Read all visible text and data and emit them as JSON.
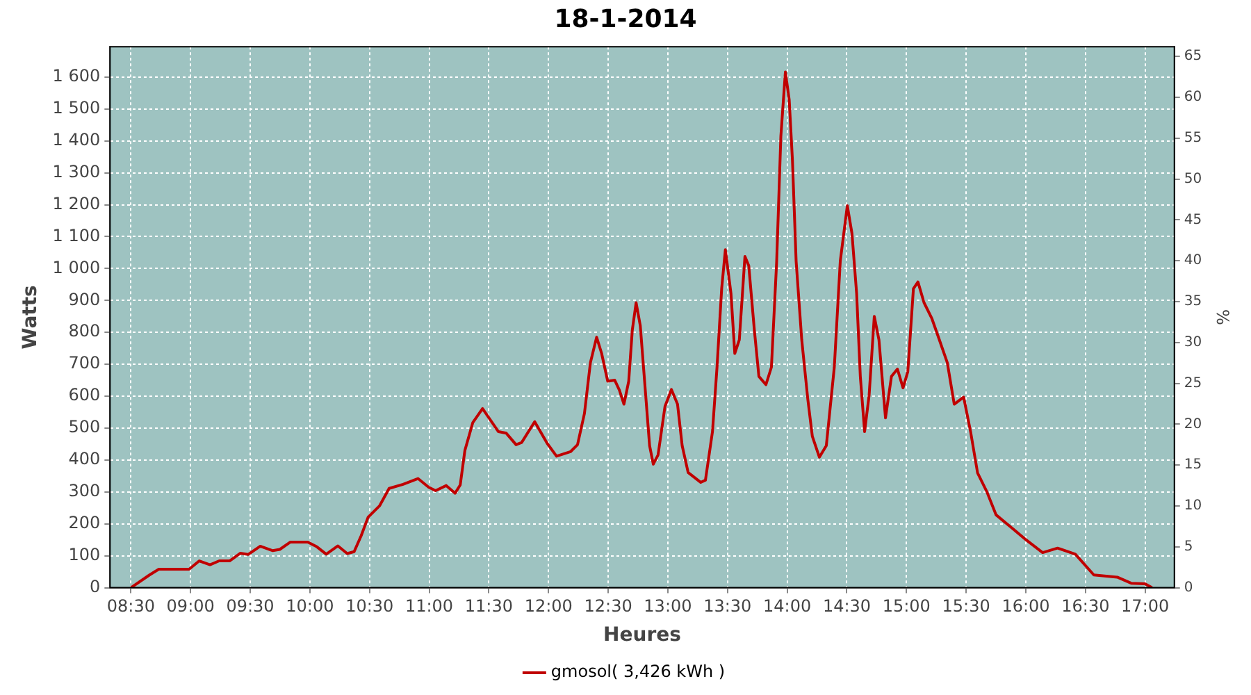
{
  "chart_data": {
    "type": "line",
    "title": "18-1-2014",
    "xlabel": "Heures",
    "ylabel": "Watts",
    "y2label": "%",
    "x": [
      8.5,
      8.656,
      8.734,
      8.889,
      8.988,
      9.073,
      9.163,
      9.24,
      9.327,
      9.416,
      9.482,
      9.584,
      9.689,
      9.748,
      9.837,
      9.982,
      10.059,
      10.137,
      10.235,
      10.313,
      10.371,
      10.43,
      10.488,
      10.585,
      10.664,
      10.781,
      10.906,
      10.995,
      11.053,
      11.143,
      11.217,
      11.26,
      11.299,
      11.365,
      11.447,
      11.58,
      11.646,
      11.728,
      11.775,
      11.884,
      11.989,
      12.067,
      12.184,
      12.243,
      12.301,
      12.351,
      12.403,
      12.445,
      12.496,
      12.555,
      12.594,
      12.632,
      12.672,
      12.702,
      12.734,
      12.769,
      12.808,
      12.847,
      12.878,
      12.918,
      12.976,
      13.03,
      13.081,
      13.12,
      13.17,
      13.276,
      13.315,
      13.374,
      13.412,
      13.451,
      13.482,
      13.529,
      13.561,
      13.599,
      13.646,
      13.678,
      13.725,
      13.763,
      13.822,
      13.868,
      13.912,
      13.947,
      13.985,
      14.017,
      14.044,
      14.075,
      14.122,
      14.173,
      14.211,
      14.27,
      14.328,
      14.395,
      14.445,
      14.504,
      14.543,
      14.582,
      14.613,
      14.649,
      14.687,
      14.73,
      14.769,
      14.824,
      14.874,
      14.924,
      14.971,
      15.011,
      15.058,
      15.096,
      15.147,
      15.213,
      15.275,
      15.342,
      15.4,
      15.479,
      15.537,
      15.596,
      15.673,
      15.751,
      15.868,
      16.005,
      16.141,
      16.266,
      16.415,
      16.57,
      16.766,
      16.883,
      16.999,
      17.058
    ],
    "series": [
      {
        "name": "gmosol( 3,426 kWh )",
        "color": "#c00000",
        "values": [
          0,
          40,
          58,
          58,
          58,
          84,
          72,
          84,
          84,
          108,
          104,
          130,
          116,
          120,
          143,
          143,
          128,
          105,
          131,
          107,
          113,
          163,
          221,
          257,
          311,
          324,
          342,
          315,
          304,
          320,
          296,
          322,
          430,
          517,
          561,
          489,
          484,
          448,
          455,
          520,
          452,
          412,
          426,
          448,
          546,
          705,
          785,
          734,
          647,
          650,
          619,
          575,
          647,
          807,
          893,
          821,
          633,
          445,
          387,
          416,
          568,
          621,
          575,
          445,
          361,
          330,
          337,
          489,
          691,
          937,
          1059,
          922,
          734,
          777,
          1038,
          1009,
          807,
          662,
          636,
          691,
          1023,
          1414,
          1616,
          1529,
          1341,
          1023,
          777,
          590,
          474,
          409,
          445,
          691,
          1023,
          1197,
          1110,
          922,
          662,
          489,
          604,
          850,
          777,
          532,
          662,
          685,
          626,
          677,
          937,
          958,
          893,
          843,
          777,
          705,
          575,
          597,
          489,
          359,
          301,
          228,
          192,
          149,
          110,
          124,
          105,
          40,
          33,
          14,
          12,
          0
        ]
      }
    ],
    "xlim": [
      8.325,
      17.245
    ],
    "xticks": [
      {
        "value": 8.5,
        "label": "08:30"
      },
      {
        "value": 9,
        "label": "09:00"
      },
      {
        "value": 9.5,
        "label": "09:30"
      },
      {
        "value": 10,
        "label": "10:00"
      },
      {
        "value": 10.5,
        "label": "10:30"
      },
      {
        "value": 11,
        "label": "11:00"
      },
      {
        "value": 11.5,
        "label": "11:30"
      },
      {
        "value": 12,
        "label": "12:00"
      },
      {
        "value": 12.5,
        "label": "12:30"
      },
      {
        "value": 13,
        "label": "13:00"
      },
      {
        "value": 13.5,
        "label": "13:30"
      },
      {
        "value": 14,
        "label": "14:00"
      },
      {
        "value": 14.5,
        "label": "14:30"
      },
      {
        "value": 15,
        "label": "15:00"
      },
      {
        "value": 15.5,
        "label": "15:30"
      },
      {
        "value": 16,
        "label": "16:00"
      },
      {
        "value": 16.5,
        "label": "16:30"
      },
      {
        "value": 17,
        "label": "17:00"
      }
    ],
    "ylim": [
      0,
      1695
    ],
    "yticks": [
      0,
      100,
      200,
      300,
      400,
      500,
      600,
      700,
      800,
      900,
      {
        "value": 1000,
        "label": "1 000"
      },
      {
        "value": 1100,
        "label": "1 100"
      },
      {
        "value": 1200,
        "label": "1 200"
      },
      {
        "value": 1300,
        "label": "1 300"
      },
      {
        "value": 1400,
        "label": "1 400"
      },
      {
        "value": 1500,
        "label": "1 500"
      },
      {
        "value": 1600,
        "label": "1 600"
      }
    ],
    "y2lim": [
      0,
      66.2
    ],
    "y2ticks": [
      0,
      5,
      10,
      15,
      20,
      25,
      30,
      35,
      40,
      45,
      50,
      55,
      60,
      65
    ],
    "grid": true,
    "legend": "bottom",
    "marker": "none",
    "line_style": "solid"
  }
}
